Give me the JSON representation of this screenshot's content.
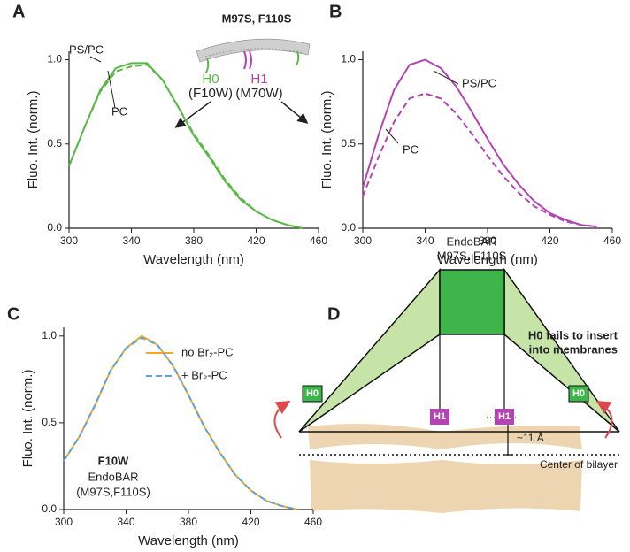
{
  "chart_data": [
    {
      "type": "line",
      "panel_label": "A",
      "xlabel": "Wavelength (nm)",
      "ylabel": "Fluo. Int. (norm.)",
      "x": [
        300,
        310,
        320,
        330,
        340,
        350,
        360,
        370,
        380,
        390,
        400,
        410,
        420,
        430,
        440,
        450
      ],
      "series": [
        {
          "name": "PS/PC",
          "color": "#5ab946",
          "dashed": false,
          "values": [
            0.37,
            0.6,
            0.82,
            0.95,
            0.98,
            0.98,
            0.88,
            0.72,
            0.55,
            0.42,
            0.28,
            0.17,
            0.1,
            0.05,
            0.02,
            0.0
          ]
        },
        {
          "name": "PC",
          "color": "#5ab946",
          "dashed": true,
          "values": [
            0.37,
            0.6,
            0.81,
            0.93,
            0.96,
            0.97,
            0.88,
            0.72,
            0.56,
            0.43,
            0.29,
            0.18,
            0.1,
            0.05,
            0.02,
            0.0
          ]
        }
      ],
      "xlim": [
        300,
        460
      ],
      "xticks": [
        300,
        340,
        380,
        420,
        460
      ],
      "ylim": [
        0,
        1.05
      ],
      "yticks": [
        {
          "value": 0,
          "label": "0.0"
        },
        0.5,
        {
          "value": 1,
          "label": "1.0"
        }
      ],
      "inset": {
        "title": "M97S, F110S",
        "labels": [
          "H0",
          "(F10W)",
          "H1",
          "(M70W)"
        ]
      }
    },
    {
      "type": "line",
      "panel_label": "B",
      "xlabel": "Wavelength (nm)",
      "ylabel": "Fluo. Int. (norm.)",
      "x": [
        300,
        310,
        320,
        330,
        340,
        350,
        360,
        370,
        380,
        390,
        400,
        410,
        420,
        430,
        440,
        450
      ],
      "series": [
        {
          "name": "PS/PC",
          "color": "#b444b4",
          "dashed": false,
          "values": [
            0.24,
            0.55,
            0.82,
            0.97,
            1.0,
            0.95,
            0.84,
            0.69,
            0.53,
            0.38,
            0.26,
            0.16,
            0.09,
            0.05,
            0.02,
            0.01
          ]
        },
        {
          "name": "PC",
          "color": "#b444b4",
          "dashed": true,
          "values": [
            0.19,
            0.42,
            0.63,
            0.77,
            0.8,
            0.77,
            0.68,
            0.56,
            0.43,
            0.31,
            0.21,
            0.13,
            0.08,
            0.04,
            0.02,
            0.01
          ]
        }
      ],
      "xlim": [
        300,
        460
      ],
      "xticks": [
        300,
        340,
        380,
        420,
        460
      ],
      "ylim": [
        0,
        1.05
      ],
      "yticks": [
        {
          "value": 0,
          "label": "0.0"
        },
        0.5,
        {
          "value": 1,
          "label": "1.0"
        }
      ]
    },
    {
      "type": "line",
      "panel_label": "C",
      "xlabel": "Wavelength (nm)",
      "ylabel": "Fluo. Int. (norm.)",
      "x": [
        300,
        310,
        320,
        330,
        340,
        350,
        360,
        370,
        380,
        390,
        400,
        410,
        420,
        430,
        440,
        450
      ],
      "series": [
        {
          "name": "no Br₂-PC",
          "color": "#f5a623",
          "dashed": false,
          "values": [
            0.28,
            0.42,
            0.6,
            0.8,
            0.93,
            1.0,
            0.95,
            0.83,
            0.66,
            0.48,
            0.33,
            0.2,
            0.11,
            0.05,
            0.02,
            0.0
          ]
        },
        {
          "name": "+ Br₂-PC",
          "color": "#5ba3d9",
          "dashed": true,
          "values": [
            0.28,
            0.42,
            0.6,
            0.8,
            0.93,
            0.99,
            0.95,
            0.83,
            0.66,
            0.48,
            0.33,
            0.2,
            0.11,
            0.05,
            0.02,
            0.0
          ]
        }
      ],
      "xlim": [
        300,
        460
      ],
      "xticks": [
        300,
        340,
        380,
        420,
        460
      ],
      "ylim": [
        0,
        1.05
      ],
      "yticks": [
        {
          "value": 0,
          "label": "0.0"
        },
        0.5,
        {
          "value": 1,
          "label": "1.0"
        }
      ],
      "annotations": [
        "F10W",
        "EndoBAR",
        "(M97S,F110S)"
      ]
    }
  ],
  "diagram": {
    "panel_label": "D",
    "title": [
      "EndoBAR",
      "M97S, F110S"
    ],
    "note": [
      "H0 fails to insert",
      "into membranes"
    ],
    "helices": [
      "H0",
      "H0",
      "H1",
      "H1"
    ],
    "distance": "~11 Å",
    "center_label": "Center of bilayer"
  }
}
